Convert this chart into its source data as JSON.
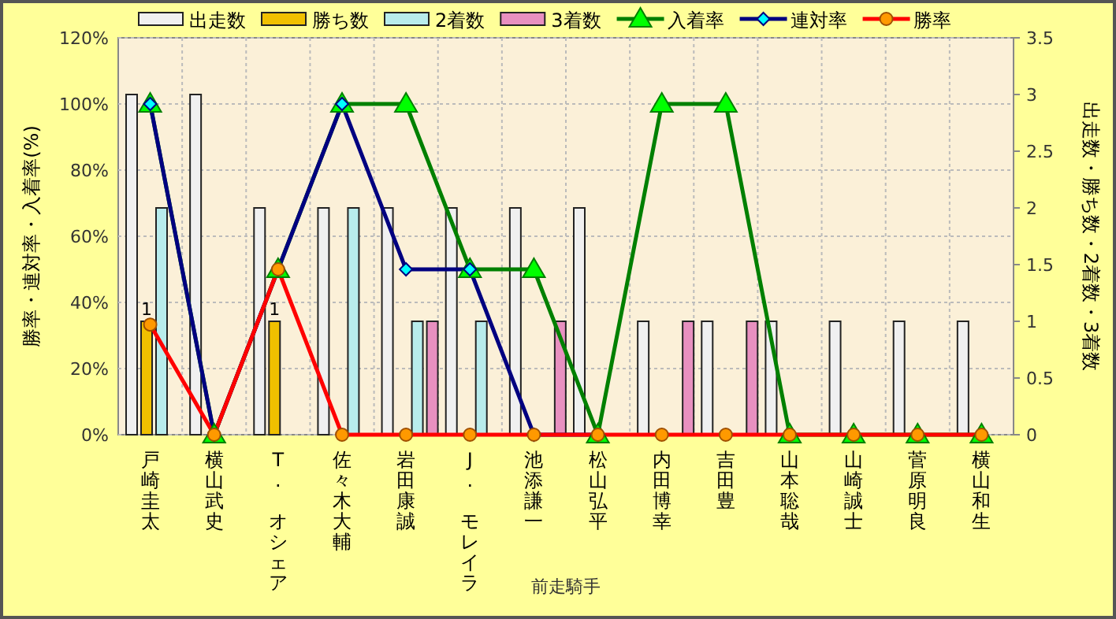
{
  "chart_data": {
    "type": "bar",
    "xlabel": "前走騎手",
    "ylabel": "勝率・連対率・入着率(%)",
    "y2label": "出走数・勝ち数・2着数・3着数",
    "categories": [
      "戸崎圭太",
      "横山武史",
      "T. オシェア",
      "佐々木大輔",
      "岩田康誠",
      "J. モレイラ",
      "池添謙一",
      "松山弘平",
      "内田博幸",
      "吉田豊",
      "山本聡哉",
      "山崎誠士",
      "菅原明良",
      "横山和生"
    ],
    "series": [
      {
        "name": "出走数",
        "axis": "y2",
        "color": "#f0f0f0",
        "values": [
          3,
          3,
          2,
          2,
          2,
          2,
          2,
          2,
          1,
          1,
          1,
          1,
          1,
          1
        ]
      },
      {
        "name": "勝ち数",
        "axis": "y2",
        "color": "#f0c000",
        "values": [
          1,
          0,
          1,
          0,
          0,
          0,
          0,
          0,
          0,
          0,
          0,
          0,
          0,
          0
        ],
        "value_labels": [
          "1",
          null,
          "1",
          null,
          null,
          null,
          null,
          null,
          null,
          null,
          null,
          null,
          null,
          null
        ]
      },
      {
        "name": "2着数",
        "axis": "y2",
        "color": "#b8ecec",
        "values": [
          2,
          0,
          0,
          2,
          1,
          1,
          0,
          0,
          0,
          0,
          0,
          0,
          0,
          0
        ]
      },
      {
        "name": "3着数",
        "axis": "y2",
        "color": "#e890c0",
        "values": [
          0,
          0,
          0,
          0,
          1,
          0,
          1,
          0,
          1,
          1,
          0,
          0,
          0,
          0
        ]
      },
      {
        "name": "入着率",
        "type": "line",
        "color": "#008000",
        "marker": "triangle",
        "values": [
          100,
          0,
          50,
          100,
          100,
          50,
          50,
          0,
          100,
          100,
          0,
          0,
          0,
          0
        ]
      },
      {
        "name": "連対率",
        "type": "line",
        "color": "#000080",
        "marker": "diamond",
        "values": [
          100,
          0,
          50,
          100,
          50,
          50,
          0,
          0,
          null,
          null,
          null,
          null,
          null,
          null
        ]
      },
      {
        "name": "勝率",
        "type": "line",
        "color": "#ff0000",
        "marker": "circle",
        "values": [
          33.3,
          0,
          50,
          0,
          0,
          0,
          0,
          0,
          0,
          0,
          0,
          0,
          0,
          0
        ]
      }
    ],
    "ylim": [
      0,
      120
    ],
    "yticks": [
      {
        "value": 0,
        "label": "0%"
      },
      {
        "value": 20,
        "label": "20%"
      },
      {
        "value": 40,
        "label": "40%"
      },
      {
        "value": 60,
        "label": "60%"
      },
      {
        "value": 80,
        "label": "80%"
      },
      {
        "value": 100,
        "label": "100%"
      },
      {
        "value": 120,
        "label": "120%"
      }
    ],
    "y2lim": [
      0,
      3.5
    ],
    "y2ticks": [
      0,
      0.5,
      1,
      1.5,
      2,
      2.5,
      3,
      3.5
    ],
    "grid": true,
    "legend": "top"
  }
}
